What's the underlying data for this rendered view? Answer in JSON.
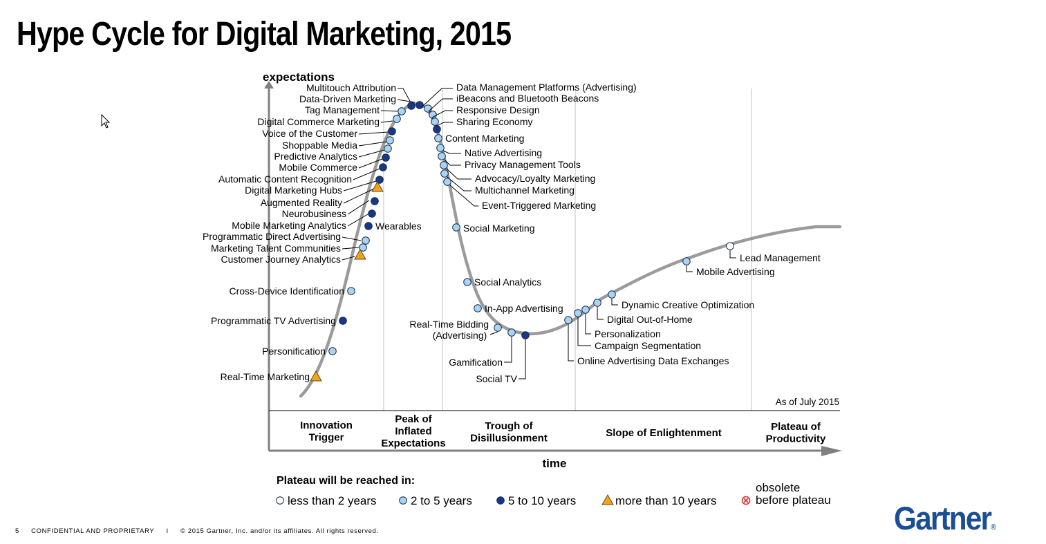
{
  "slide": {
    "title": "Hype Cycle for Digital Marketing, 2015",
    "footer": {
      "page_number": "5",
      "confidential": "CONFIDENTIAL AND PROPRIETARY",
      "separator": "I",
      "copyright": "© 2015 Gartner, Inc. and/or its affiliates. All rights reserved."
    },
    "logo_text": "Gartner",
    "logo_mark": "®",
    "brand_color": "#1a4e96"
  },
  "diagram": {
    "y_axis_label": "expectations",
    "x_axis_label": "time",
    "as_of": "As of July 2015",
    "phases": [
      {
        "id": "innovation-trigger",
        "lines": [
          "Innovation",
          "Trigger"
        ]
      },
      {
        "id": "peak",
        "lines": [
          "Peak of",
          "Inflated",
          "Expectations"
        ]
      },
      {
        "id": "trough",
        "lines": [
          "Trough of",
          "Disillusionment"
        ]
      },
      {
        "id": "slope",
        "lines": [
          "Slope of Enlightenment"
        ]
      },
      {
        "id": "plateau",
        "lines": [
          "Plateau of",
          "Productivity"
        ]
      }
    ],
    "legend": {
      "title": "Plateau will be reached in:",
      "items": [
        {
          "key": "lt2",
          "label": "less than 2 years"
        },
        {
          "key": "2to5",
          "label": "2 to 5 years"
        },
        {
          "key": "5to10",
          "label": "5 to 10 years"
        },
        {
          "key": "gt10",
          "label": "more than 10 years"
        },
        {
          "key": "obsolete",
          "lines": [
            "obsolete",
            "before plateau"
          ]
        }
      ]
    },
    "marker_colors": {
      "lt2": "#ffffff",
      "2to5": "#a8d4f5",
      "5to10": "#15388c",
      "gt10": "#f4a020",
      "obsolete": "#e0312f",
      "curve": "#9b9b9b",
      "axis": "#808080"
    },
    "technologies": [
      {
        "name": "Multitouch Attribution",
        "category": "5to10"
      },
      {
        "name": "Data-Driven Marketing",
        "category": "5to10"
      },
      {
        "name": "Tag Management",
        "category": "2to5"
      },
      {
        "name": "Digital Commerce Marketing",
        "category": "2to5"
      },
      {
        "name": "Voice of the Customer",
        "category": "5to10"
      },
      {
        "name": "Shoppable Media",
        "category": "2to5"
      },
      {
        "name": "Predictive Analytics",
        "category": "2to5"
      },
      {
        "name": "Mobile Commerce",
        "category": "5to10"
      },
      {
        "name": "Automatic Content Recognition",
        "category": "5to10"
      },
      {
        "name": "Digital Marketing Hubs",
        "category": "5to10"
      },
      {
        "name": "Augmented Reality",
        "category": "gt10"
      },
      {
        "name": "Neurobusiness",
        "category": "5to10"
      },
      {
        "name": "Mobile Marketing Analytics",
        "category": "5to10"
      },
      {
        "name": "Wearables",
        "category": "5to10"
      },
      {
        "name": "Programmatic Direct Advertising",
        "category": "2to5"
      },
      {
        "name": "Marketing Talent Communities",
        "category": "2to5"
      },
      {
        "name": "Customer Journey Analytics",
        "category": "gt10"
      },
      {
        "name": "Cross-Device Identification",
        "category": "2to5"
      },
      {
        "name": "Programmatic TV Advertising",
        "category": "5to10"
      },
      {
        "name": "Personification",
        "category": "2to5"
      },
      {
        "name": "Real-Time Marketing",
        "category": "gt10"
      },
      {
        "name": "Data Management Platforms (Advertising)",
        "category": "2to5"
      },
      {
        "name": "iBeacons and Bluetooth Beacons",
        "category": "2to5"
      },
      {
        "name": "Responsive Design",
        "category": "2to5"
      },
      {
        "name": "Sharing Economy",
        "category": "5to10"
      },
      {
        "name": "Content Marketing",
        "category": "2to5"
      },
      {
        "name": "Native Advertising",
        "category": "2to5"
      },
      {
        "name": "Privacy Management Tools",
        "category": "2to5"
      },
      {
        "name": "Advocacy/Loyalty Marketing",
        "category": "2to5"
      },
      {
        "name": "Multichannel Marketing",
        "category": "2to5"
      },
      {
        "name": "Event-Triggered Marketing",
        "category": "2to5"
      },
      {
        "name": "Social Marketing",
        "category": "2to5"
      },
      {
        "name": "Social Analytics",
        "category": "2to5"
      },
      {
        "name": "In-App Advertising",
        "category": "2to5"
      },
      {
        "name": "Real-Time Bidding (Advertising)",
        "category": "2to5",
        "lines": [
          "Real-Time Bidding",
          "(Advertising)"
        ]
      },
      {
        "name": "Gamification",
        "category": "2to5"
      },
      {
        "name": "Social TV",
        "category": "5to10"
      },
      {
        "name": "Online Advertising Data Exchanges",
        "category": "2to5"
      },
      {
        "name": "Campaign Segmentation",
        "category": "2to5"
      },
      {
        "name": "Personalization",
        "category": "2to5"
      },
      {
        "name": "Digital Out-of-Home",
        "category": "2to5"
      },
      {
        "name": "Dynamic Creative Optimization",
        "category": "2to5"
      },
      {
        "name": "Mobile Advertising",
        "category": "2to5"
      },
      {
        "name": "Lead Management",
        "category": "lt2"
      }
    ]
  }
}
